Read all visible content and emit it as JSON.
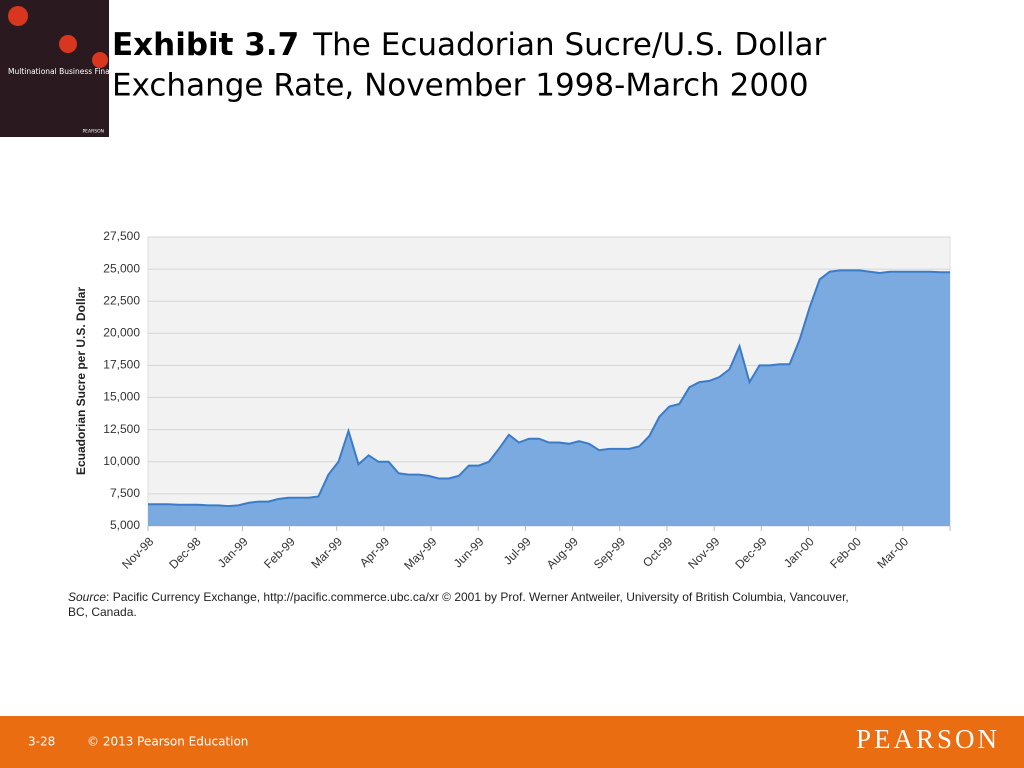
{
  "slide": {
    "exhibit": "Exhibit 3.7",
    "title": "The Ecuadorian Sucre/U.S. Dollar Exchange Rate, November 1998-March 2000",
    "cover_title": "Multinational Business Finance",
    "cover_publisher": "PEARSON",
    "page": "3-28",
    "copyright": "© 2013 Pearson Education",
    "brand": "PEARSON"
  },
  "chart_data": {
    "type": "area",
    "y_label": "Ecuadorian Sucre per U.S. Dollar",
    "x_labels": [
      "Nov-98",
      "Dec-98",
      "Jan-99",
      "Feb-99",
      "Mar-99",
      "Apr-99",
      "May-99",
      "Jun-99",
      "Jul-99",
      "Aug-99",
      "Sep-99",
      "Oct-99",
      "Nov-99",
      "Dec-99",
      "Jan-00",
      "Feb-00",
      "Mar-00"
    ],
    "values": [
      6700,
      6700,
      6700,
      6650,
      6650,
      6650,
      6600,
      6600,
      6550,
      6600,
      6800,
      6900,
      6900,
      7100,
      7200,
      7200,
      7200,
      7300,
      9000,
      10000,
      12400,
      9800,
      10500,
      10000,
      10000,
      9100,
      9000,
      9000,
      8900,
      8700,
      8700,
      8900,
      9700,
      9700,
      10000,
      11000,
      12100,
      11500,
      11800,
      11800,
      11500,
      11500,
      11400,
      11600,
      11400,
      10900,
      11000,
      11000,
      11000,
      11200,
      12000,
      13500,
      14300,
      14500,
      15800,
      16200,
      16300,
      16600,
      17200,
      19000,
      16200,
      17500,
      17500,
      17600,
      17600,
      19500,
      22000,
      24200,
      24800,
      24900,
      24900,
      24900,
      24800,
      24700,
      24800,
      24800,
      24800,
      24800,
      24800,
      24750,
      24750
    ],
    "color": "#7aaae0",
    "line_color": "#3a7cc9",
    "ylim": [
      5000,
      27500
    ],
    "yticks": [
      {
        "value": 5000,
        "label": "5,000"
      },
      {
        "value": 7500,
        "label": "7,500"
      },
      {
        "value": 10000,
        "label": "10,000"
      },
      {
        "value": 12500,
        "label": "12,500"
      },
      {
        "value": 15000,
        "label": "15,000"
      },
      {
        "value": 17500,
        "label": "17,500"
      },
      {
        "value": 20000,
        "label": "20,000"
      },
      {
        "value": 22500,
        "label": "22,500"
      },
      {
        "value": 25000,
        "label": "25,000"
      },
      {
        "value": 27500,
        "label": "27,500"
      }
    ],
    "grid": true,
    "source": {
      "label": "Source",
      "text": ": Pacific Currency Exchange, http://pacific.commerce.ubc.ca/xr © 2001 by Prof. Werner Antweiler, University of British Columbia, Vancouver,",
      "text2": "BC, Canada."
    }
  }
}
